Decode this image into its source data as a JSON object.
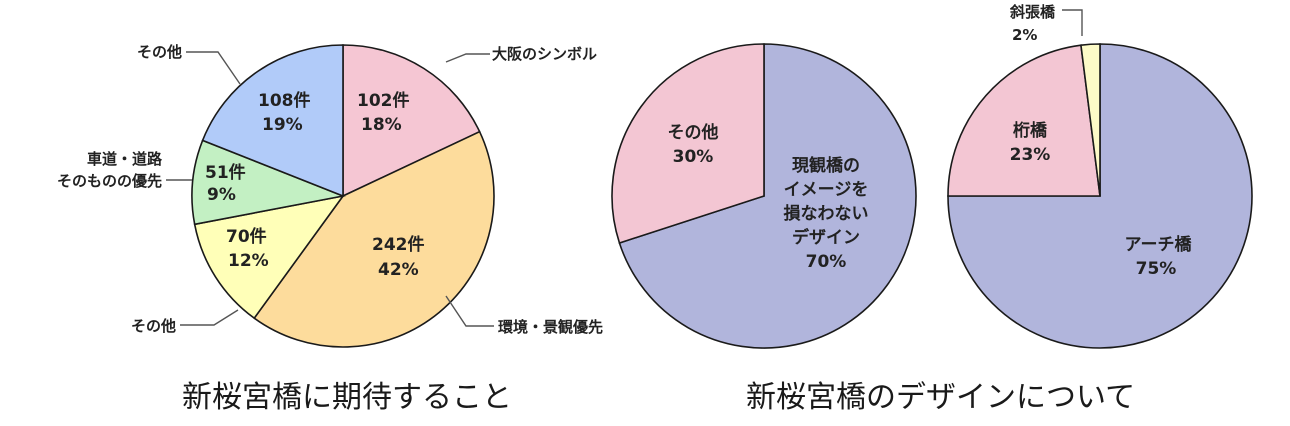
{
  "chart_data": [
    {
      "type": "pie",
      "title": "新桜宮橋に期待すること",
      "start": "12 o'clock",
      "direction": "clockwise",
      "slices": [
        {
          "category": "大阪のシンボル",
          "count": "102件",
          "percent": "18%",
          "value": 18,
          "color": "#f5c6d3"
        },
        {
          "category": "環境・景観優先",
          "count": "242件",
          "percent": "42%",
          "value": 42,
          "color": "#fddc9c"
        },
        {
          "category": "その他",
          "count": "70件",
          "percent": "12%",
          "value": 12,
          "color": "#ffffb8"
        },
        {
          "category": "車道・道路そのものの優先",
          "count": "51件",
          "percent": "9%",
          "value": 9,
          "color": "#c3f0c3"
        },
        {
          "category": "その他",
          "count": "108件",
          "percent": "19%",
          "value": 19,
          "color": "#b1cbf9"
        }
      ],
      "labels": {
        "symbol": "大阪のシンボル",
        "env": "環境・景観優先",
        "other_bottom": "その他",
        "road_line1": "車道・道路",
        "road_line2": "そのものの優先",
        "other_top": "その他"
      }
    },
    {
      "type": "pie",
      "title": "新桜宮橋のデザインについて",
      "start": "12 o'clock",
      "direction": "clockwise",
      "slices": [
        {
          "category": "現観橋のイメージを損なわないデザイン",
          "percent": "70%",
          "value": 70,
          "color": "#b1b5dc"
        },
        {
          "category": "その他",
          "percent": "30%",
          "value": 30,
          "color": "#f3c6d3"
        }
      ],
      "label_lines": {
        "design": [
          "現観橋の",
          "イメージを",
          "損なわない",
          "デザイン",
          "70%"
        ],
        "other": [
          "その他",
          "30%"
        ]
      }
    },
    {
      "type": "pie",
      "title": "新桜宮橋のデザインについて",
      "start": "12 o'clock",
      "direction": "clockwise",
      "slices": [
        {
          "category": "アーチ橋",
          "percent": "75%",
          "value": 75,
          "color": "#b1b5dc"
        },
        {
          "category": "桁橋",
          "percent": "23%",
          "value": 23,
          "color": "#f3c6d3"
        },
        {
          "category": "斜張橋",
          "percent": "2%",
          "value": 2,
          "color": "#fdfbc8"
        }
      ]
    }
  ],
  "captions": {
    "left": "新桜宮橋に期待すること",
    "right": "新桜宮橋のデザインについて"
  }
}
